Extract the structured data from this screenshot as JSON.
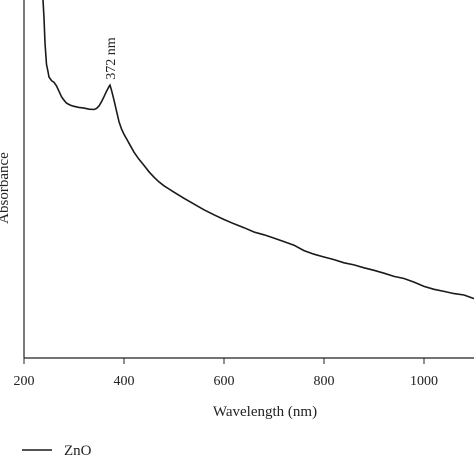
{
  "chart_data": {
    "type": "line",
    "xlabel": "Wavelength (nm)",
    "ylabel": "Absorbance",
    "xlim": [
      200,
      1100
    ],
    "x_ticks": [
      200,
      400,
      600,
      800,
      1000
    ],
    "x_tick_labels": [
      "200",
      "400",
      "600",
      "800",
      "1000"
    ],
    "ylim": [
      0,
      1
    ],
    "y_ticks": [],
    "grid": false,
    "legend_position": "bottom-left",
    "annotations": [
      {
        "text": "372 nm",
        "x": 372,
        "y": 0.755
      }
    ],
    "series": [
      {
        "name": "ZnO",
        "color": "#1a1a1a",
        "x": [
          238,
          240,
          242,
          245,
          248,
          250,
          255,
          260,
          265,
          270,
          275,
          280,
          285,
          290,
          295,
          300,
          310,
          320,
          330,
          340,
          345,
          350,
          355,
          360,
          365,
          370,
          372,
          375,
          380,
          385,
          390,
          395,
          400,
          410,
          420,
          430,
          440,
          450,
          460,
          470,
          480,
          490,
          500,
          520,
          540,
          560,
          580,
          600,
          620,
          640,
          660,
          680,
          700,
          720,
          740,
          760,
          780,
          800,
          820,
          840,
          860,
          880,
          900,
          920,
          940,
          960,
          980,
          1000,
          1020,
          1040,
          1060,
          1080,
          1100
        ],
        "y": [
          1.0,
          0.95,
          0.88,
          0.82,
          0.8,
          0.785,
          0.775,
          0.77,
          0.76,
          0.745,
          0.73,
          0.72,
          0.712,
          0.708,
          0.705,
          0.703,
          0.7,
          0.698,
          0.695,
          0.694,
          0.697,
          0.704,
          0.716,
          0.73,
          0.745,
          0.758,
          0.762,
          0.748,
          0.72,
          0.69,
          0.66,
          0.64,
          0.625,
          0.6,
          0.575,
          0.555,
          0.538,
          0.52,
          0.505,
          0.492,
          0.481,
          0.472,
          0.463,
          0.446,
          0.43,
          0.414,
          0.4,
          0.387,
          0.375,
          0.364,
          0.352,
          0.344,
          0.335,
          0.325,
          0.315,
          0.3,
          0.29,
          0.282,
          0.275,
          0.266,
          0.26,
          0.252,
          0.245,
          0.237,
          0.228,
          0.222,
          0.212,
          0.2,
          0.192,
          0.186,
          0.18,
          0.176,
          0.166
        ]
      }
    ]
  }
}
